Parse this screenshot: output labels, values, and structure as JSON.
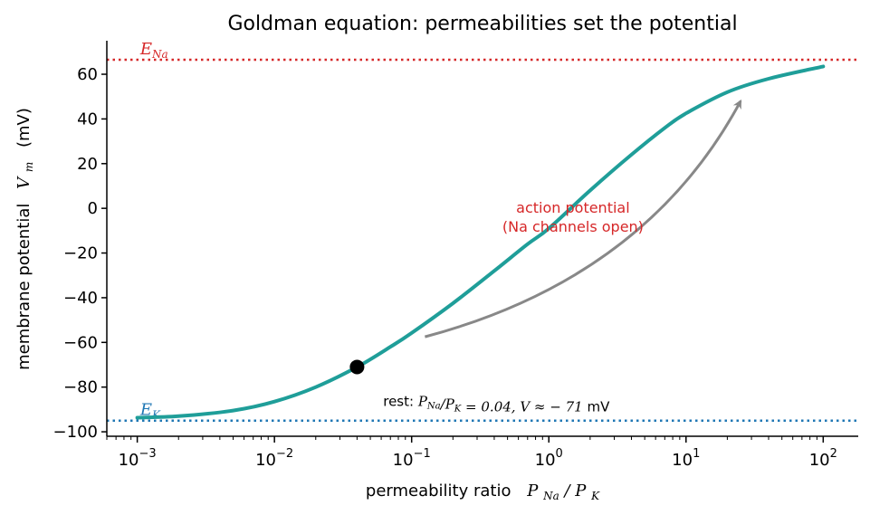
{
  "chart_data": {
    "type": "line",
    "title": "Goldman equation: permeabilities set the potential",
    "xlabel": "permeability ratio",
    "xlabel_math": {
      "base": "P",
      "sub1": "Na",
      "slash": "/",
      "base2": "P",
      "sub2": "K"
    },
    "ylabel": "membrane potential",
    "ylabel_math": {
      "base": "V",
      "sub": "m"
    },
    "ylabel_unit": "(mV)",
    "x_scale": "log",
    "xlim": [
      0.0006,
      180
    ],
    "ylim": [
      -102,
      75
    ],
    "x_ticks": [
      0.001,
      0.01,
      0.1,
      1,
      10,
      100
    ],
    "x_tick_labels": [
      {
        "base": "10",
        "exp": "−3"
      },
      {
        "base": "10",
        "exp": "−2"
      },
      {
        "base": "10",
        "exp": "−1"
      },
      {
        "base": "10",
        "exp": "0"
      },
      {
        "base": "10",
        "exp": "1"
      },
      {
        "base": "10",
        "exp": "2"
      }
    ],
    "y_ticks": [
      -100,
      -80,
      -60,
      -40,
      -20,
      0,
      20,
      40,
      60
    ],
    "y_tick_labels": [
      "−100",
      "−80",
      "−60",
      "−40",
      "−20",
      "0",
      "20",
      "40",
      "60"
    ],
    "grid": false,
    "series": [
      {
        "type": "line",
        "color": "#1f9e99",
        "x": [
          0.001,
          0.002,
          0.005,
          0.01,
          0.02,
          0.04,
          0.07,
          0.1,
          0.2,
          0.4,
          0.7,
          1,
          2,
          4,
          7,
          10,
          20,
          40,
          100
        ],
        "y": [
          -93.7,
          -93,
          -90.5,
          -86.5,
          -80,
          -71,
          -62,
          -55.8,
          -42.5,
          -28,
          -16,
          -9,
          8,
          24,
          36,
          42.5,
          52,
          58,
          63.5
        ]
      }
    ],
    "reference_lines": [
      {
        "y": 66.5,
        "color": "#d62728",
        "style": "dotted",
        "label": {
          "base": "E",
          "sub": "Na"
        }
      },
      {
        "y": -95,
        "color": "#1f77b4",
        "style": "dotted",
        "label": {
          "base": "E",
          "sub": "K"
        }
      }
    ],
    "marker": {
      "x": 0.04,
      "y": -71,
      "color": "#000000"
    },
    "annotations": [
      {
        "id": "rest",
        "parts": [
          {
            "kind": "text",
            "text": "rest:  "
          },
          {
            "kind": "math",
            "text": "P"
          },
          {
            "kind": "sub",
            "text": "Na"
          },
          {
            "kind": "math",
            "text": "/P"
          },
          {
            "kind": "sub",
            "text": "K"
          },
          {
            "kind": "math",
            "text": " = 0.04,  V ≈ − 71"
          },
          {
            "kind": "text",
            "text": " mV"
          }
        ],
        "x": 0.062,
        "y": -88.5
      },
      {
        "id": "ap",
        "lines": [
          "action potential",
          "(Na channels open)"
        ],
        "color": "#d62728",
        "x": 1.5,
        "y": -2
      }
    ],
    "arrow": {
      "from": [
        0.125,
        -57.5
      ],
      "to": [
        25,
        48
      ],
      "color": "#888888"
    }
  }
}
